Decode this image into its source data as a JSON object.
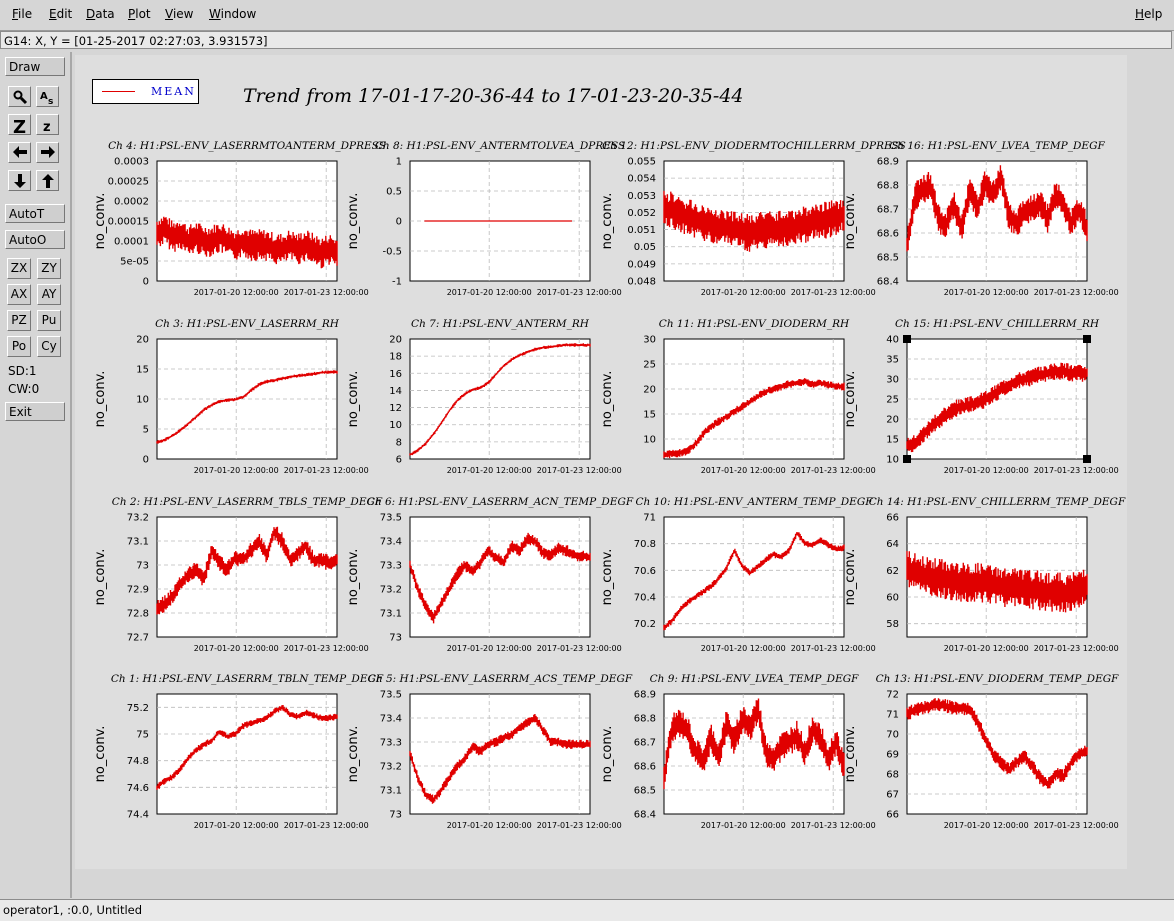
{
  "menubar": {
    "items": [
      "File",
      "Edit",
      "Data",
      "Plot",
      "View",
      "Window"
    ],
    "help": "Help"
  },
  "status_line": "G14: X, Y = [01-25-2017 02:27:03, 3.931573]",
  "toolbar": {
    "draw": "Draw",
    "autot": "AutoT",
    "autoo": "AutoO",
    "zx": "ZX",
    "zy": "ZY",
    "ax": "AX",
    "ay": "AY",
    "pz": "PZ",
    "pu": "Pu",
    "po": "Po",
    "cy": "Cy",
    "sd": "SD:1",
    "cw": "CW:0",
    "exit": "Exit",
    "icons": [
      "magnify-icon",
      "text-size-icon",
      "zoom-in-icon",
      "zoom-out-icon",
      "arrow-left-icon",
      "arrow-right-icon",
      "arrow-down-icon",
      "arrow-up-icon"
    ]
  },
  "legend": {
    "label": "MEAN",
    "color": "#e00000"
  },
  "main_title": "Trend from 17-01-17-20-36-44 to 17-01-23-20-35-44",
  "bottom_status": "operator1, :0.0, Untitled",
  "chart_data": [
    {
      "type": "line",
      "title": "Ch 4: H1:PSL-ENV_LASERRMTOANTERM_DPRESS",
      "ylabel": "no_conv.",
      "ylim": [
        0,
        0.0003
      ],
      "yticks": [
        "0",
        "5e-05",
        "0.0001",
        "0.00015",
        "0.0002",
        "0.00025",
        "0.0003"
      ],
      "xticks": [
        "2017-01-20 12:00:00",
        "2017-01-23 12:00:00"
      ],
      "series": [
        {
          "values": [
            0.00012,
            0.00013,
            0.00011,
            0.00012,
            0.0001,
            0.00011,
            0.0001,
            0.0001,
            0.00011,
            0.0001,
            9e-05,
            0.0001,
            9e-05,
            9e-05,
            9e-05,
            8e-05,
            8e-05,
            9e-05,
            8e-05,
            9e-05,
            8e-05,
            7e-05,
            8e-05,
            7e-05
          ],
          "spread": 4e-05
        }
      ]
    },
    {
      "type": "line",
      "title": "Ch 8: H1:PSL-ENV_ANTERMTOLVEA_DPRESS",
      "ylabel": "no_conv.",
      "ylim": [
        -1,
        1
      ],
      "yticks": [
        "-1",
        "-0.5",
        "0",
        "0.5",
        "1"
      ],
      "xticks": [
        "2017-01-20 12:00:00",
        "2017-01-23 12:00:00"
      ],
      "series": [
        {
          "values": [
            0,
            0,
            0,
            0,
            0,
            0,
            0,
            0,
            0,
            0,
            0,
            0,
            0,
            0,
            0,
            0,
            0,
            0,
            0,
            0,
            0,
            0,
            0,
            0
          ],
          "spread": 0,
          "x_start": 0.08,
          "x_end": 0.9
        }
      ]
    },
    {
      "type": "line",
      "title": "Ch 12: H1:PSL-ENV_DIODERMTOCHILLERRM_DPRESS",
      "ylabel": "no_conv.",
      "ylim": [
        0.048,
        0.055
      ],
      "yticks": [
        "0.048",
        "0.049",
        "0.05",
        "0.051",
        "0.052",
        "0.053",
        "0.054",
        "0.055"
      ],
      "xticks": [
        "2017-01-20 12:00:00",
        "2017-01-23 12:00:00"
      ],
      "series": [
        {
          "values": [
            0.0522,
            0.0521,
            0.0519,
            0.0517,
            0.0516,
            0.0514,
            0.0513,
            0.0512,
            0.0511,
            0.051,
            0.0509,
            0.0508,
            0.0509,
            0.051,
            0.051,
            0.0511,
            0.0511,
            0.0512,
            0.0513,
            0.0514,
            0.0515,
            0.0516,
            0.0517,
            0.0519
          ],
          "spread": 0.0011
        }
      ]
    },
    {
      "type": "line",
      "title": "Ch 16: H1:PSL-ENV_LVEA_TEMP_DEGF",
      "ylabel": "no_conv.",
      "ylim": [
        68.4,
        68.9
      ],
      "yticks": [
        "68.4",
        "68.5",
        "68.6",
        "68.7",
        "68.8",
        "68.9"
      ],
      "xticks": [
        "2017-01-20 12:00:00",
        "2017-01-23 12:00:00"
      ],
      "series": [
        {
          "values": [
            68.55,
            68.75,
            68.78,
            68.8,
            68.66,
            68.63,
            68.72,
            68.62,
            68.78,
            68.7,
            68.81,
            68.76,
            68.84,
            68.67,
            68.64,
            68.69,
            68.7,
            68.72,
            68.66,
            68.76,
            68.72,
            68.64,
            68.7,
            68.62
          ],
          "spread": 0.06
        }
      ]
    },
    {
      "type": "line",
      "title": "Ch 3: H1:PSL-ENV_LASERRM_RH",
      "ylabel": "no_conv.",
      "ylim": [
        0,
        20
      ],
      "yticks": [
        "0",
        "5",
        "10",
        "15",
        "20"
      ],
      "xticks": [
        "2017-01-20 12:00:00",
        "2017-01-23 12:00:00"
      ],
      "series": [
        {
          "values": [
            2.8,
            3.2,
            3.9,
            4.8,
            5.9,
            7.0,
            8.2,
            9.0,
            9.6,
            9.8,
            9.9,
            10.3,
            11.4,
            12.4,
            12.9,
            13.1,
            13.4,
            13.7,
            13.9,
            14.0,
            14.2,
            14.4,
            14.5,
            14.5
          ],
          "spread": 0.3
        }
      ]
    },
    {
      "type": "line",
      "title": "Ch 7: H1:PSL-ENV_ANTERM_RH",
      "ylabel": "no_conv.",
      "ylim": [
        6,
        20
      ],
      "yticks": [
        "6",
        "8",
        "10",
        "12",
        "14",
        "16",
        "18",
        "20"
      ],
      "xticks": [
        "2017-01-20 12:00:00",
        "2017-01-23 12:00:00"
      ],
      "series": [
        {
          "values": [
            6.5,
            7.0,
            7.8,
            8.9,
            10.2,
            11.6,
            12.8,
            13.6,
            14.1,
            14.3,
            14.9,
            15.9,
            16.9,
            17.6,
            18.1,
            18.5,
            18.8,
            19.0,
            19.1,
            19.2,
            19.3,
            19.3,
            19.3,
            19.3
          ],
          "spread": 0.2
        }
      ]
    },
    {
      "type": "line",
      "title": "Ch 11: H1:PSL-ENV_DIODERM_RH",
      "ylabel": "no_conv.",
      "ylim": [
        6,
        30
      ],
      "yticks": [
        "10",
        "15",
        "20",
        "25",
        "30"
      ],
      "xticks": [
        "2017-01-20 12:00:00",
        "2017-01-23 12:00:00"
      ],
      "series": [
        {
          "values": [
            6.8,
            7.0,
            7.2,
            7.5,
            9.0,
            11.0,
            12.5,
            13.5,
            14.5,
            15.5,
            16.5,
            17.5,
            18.5,
            19.5,
            20.0,
            20.5,
            21.0,
            21.2,
            21.5,
            21.0,
            21.2,
            20.8,
            20.5,
            20.5
          ],
          "spread": 0.8
        }
      ]
    },
    {
      "type": "line",
      "title": "Ch 15: H1:PSL-ENV_CHILLERRM_RH",
      "ylabel": "no_conv.",
      "ylim": [
        10,
        40
      ],
      "yticks": [
        "10",
        "15",
        "20",
        "25",
        "30",
        "35",
        "40"
      ],
      "xticks": [
        "2017-01-20 12:00:00",
        "2017-01-23 12:00:00"
      ],
      "series": [
        {
          "values": [
            13.5,
            14,
            16,
            18,
            19.5,
            21,
            22.5,
            23,
            23.5,
            24,
            25,
            26,
            27.5,
            28.5,
            29.5,
            30,
            30.5,
            31,
            31.5,
            32,
            32,
            31.5,
            31.5,
            31.5
          ],
          "spread": 2.2
        }
      ]
    },
    {
      "type": "line",
      "title": "Ch 2: H1:PSL-ENV_LASERRM_TBLS_TEMP_DEGF",
      "ylabel": "no_conv.",
      "ylim": [
        72.7,
        73.2
      ],
      "yticks": [
        "72.7",
        "72.8",
        "72.9",
        "73",
        "73.1",
        "73.2"
      ],
      "xticks": [
        "2017-01-20 12:00:00",
        "2017-01-23 12:00:00"
      ],
      "series": [
        {
          "values": [
            72.82,
            72.84,
            72.87,
            72.92,
            72.96,
            72.98,
            72.94,
            73.06,
            73.01,
            72.98,
            73.03,
            73.02,
            73.06,
            73.1,
            73.04,
            73.14,
            73.1,
            73.02,
            73.05,
            73.08,
            73.02,
            73.02,
            73.01,
            73.02
          ],
          "spread": 0.035
        }
      ]
    },
    {
      "type": "line",
      "title": "Ch 6: H1:PSL-ENV_LASERRM_ACN_TEMP_DEGF",
      "ylabel": "no_conv.",
      "ylim": [
        73,
        73.5
      ],
      "yticks": [
        "73",
        "73.1",
        "73.2",
        "73.3",
        "73.4",
        "73.5"
      ],
      "xticks": [
        "2017-01-20 12:00:00",
        "2017-01-23 12:00:00"
      ],
      "series": [
        {
          "values": [
            73.3,
            73.2,
            73.13,
            73.08,
            73.14,
            73.2,
            73.26,
            73.3,
            73.27,
            73.31,
            73.36,
            73.33,
            73.31,
            73.38,
            73.36,
            73.41,
            73.4,
            73.35,
            73.34,
            73.37,
            73.36,
            73.34,
            73.34,
            73.33
          ],
          "spread": 0.025
        }
      ]
    },
    {
      "type": "line",
      "title": "Ch 10: H1:PSL-ENV_ANTERM_TEMP_DEGF",
      "ylabel": "no_conv.",
      "ylim": [
        70.1,
        71
      ],
      "yticks": [
        "70.2",
        "70.4",
        "70.6",
        "70.8",
        "71"
      ],
      "xticks": [
        "2017-01-20 12:00:00",
        "2017-01-23 12:00:00"
      ],
      "series": [
        {
          "values": [
            70.17,
            70.22,
            70.3,
            70.36,
            70.4,
            70.44,
            70.48,
            70.54,
            70.62,
            70.75,
            70.63,
            70.58,
            70.63,
            70.68,
            70.72,
            70.7,
            70.75,
            70.88,
            70.8,
            70.79,
            70.83,
            70.79,
            70.76,
            70.77
          ],
          "spread": 0.025
        }
      ]
    },
    {
      "type": "line",
      "title": "Ch 14: H1:PSL-ENV_CHILLERRM_TEMP_DEGF",
      "ylabel": "no_conv.",
      "ylim": [
        57,
        66
      ],
      "yticks": [
        "58",
        "60",
        "62",
        "64",
        "66"
      ],
      "xticks": [
        "2017-01-20 12:00:00",
        "2017-01-23 12:00:00"
      ],
      "series": [
        {
          "values": [
            62,
            61.8,
            61.6,
            61.5,
            61.4,
            61.3,
            61.2,
            61.1,
            61,
            61.1,
            61,
            60.9,
            60.8,
            60.7,
            60.7,
            60.6,
            60.5,
            60.5,
            60.4,
            60.4,
            60.3,
            60.3,
            60.6,
            61
          ],
          "spread": 1.5
        }
      ]
    },
    {
      "type": "line",
      "title": "Ch 1: H1:PSL-ENV_LASERRM_TBLN_TEMP_DEGF",
      "ylabel": "no_conv.",
      "ylim": [
        74.4,
        75.3
      ],
      "yticks": [
        "74.4",
        "74.6",
        "74.8",
        "75",
        "75.2"
      ],
      "xticks": [
        "2017-01-20 12:00:00",
        "2017-01-23 12:00:00"
      ],
      "series": [
        {
          "values": [
            74.6,
            74.65,
            74.68,
            74.74,
            74.82,
            74.88,
            74.92,
            74.95,
            75.02,
            74.98,
            75.0,
            75.06,
            75.08,
            75.1,
            75.12,
            75.17,
            75.2,
            75.15,
            75.13,
            75.16,
            75.14,
            75.12,
            75.12,
            75.13
          ],
          "spread": 0.025
        }
      ]
    },
    {
      "type": "line",
      "title": "Ch 5: H1:PSL-ENV_LASERRM_ACS_TEMP_DEGF",
      "ylabel": "no_conv.",
      "ylim": [
        73,
        73.5
      ],
      "yticks": [
        "73",
        "73.1",
        "73.2",
        "73.3",
        "73.4",
        "73.5"
      ],
      "xticks": [
        "2017-01-20 12:00:00",
        "2017-01-23 12:00:00"
      ],
      "series": [
        {
          "values": [
            73.25,
            73.15,
            73.08,
            73.06,
            73.1,
            73.15,
            73.2,
            73.23,
            73.28,
            73.26,
            73.29,
            73.3,
            73.32,
            73.33,
            73.36,
            73.38,
            73.4,
            73.35,
            73.3,
            73.3,
            73.29,
            73.29,
            73.29,
            73.29
          ],
          "spread": 0.02
        }
      ]
    },
    {
      "type": "line",
      "title": "Ch 9: H1:PSL-ENV_LVEA_TEMP_DEGF",
      "ylabel": "no_conv.",
      "ylim": [
        68.4,
        68.9
      ],
      "yticks": [
        "68.4",
        "68.5",
        "68.6",
        "68.7",
        "68.8",
        "68.9"
      ],
      "xticks": [
        "2017-01-20 12:00:00",
        "2017-01-23 12:00:00"
      ],
      "series": [
        {
          "values": [
            68.55,
            68.76,
            68.78,
            68.75,
            68.66,
            68.62,
            68.72,
            68.64,
            68.78,
            68.7,
            68.8,
            68.76,
            68.84,
            68.66,
            68.63,
            68.68,
            68.7,
            68.73,
            68.65,
            68.76,
            68.72,
            68.63,
            68.7,
            68.6
          ],
          "spread": 0.06
        }
      ]
    },
    {
      "type": "line",
      "title": "Ch 13: H1:PSL-ENV_DIODERM_TEMP_DEGF",
      "ylabel": "no_conv.",
      "ylim": [
        66,
        72
      ],
      "yticks": [
        "66",
        "67",
        "68",
        "69",
        "70",
        "71",
        "72"
      ],
      "xticks": [
        "2017-01-20 12:00:00",
        "2017-01-23 12:00:00"
      ],
      "series": [
        {
          "values": [
            71,
            71.2,
            71.3,
            71.4,
            71.5,
            71.4,
            71.3,
            71.3,
            71.2,
            70.6,
            69.8,
            69.0,
            68.6,
            68.2,
            68.6,
            68.9,
            68.4,
            67.8,
            67.5,
            68.0,
            67.9,
            68.6,
            69.0,
            69.2
          ],
          "spread": 0.35
        }
      ]
    }
  ]
}
